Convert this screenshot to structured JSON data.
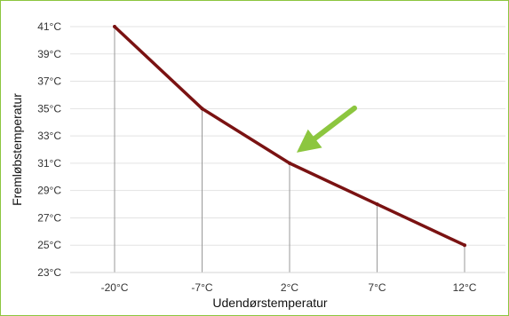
{
  "chart_data": {
    "type": "line",
    "title": "",
    "xlabel": "Udendørstemperatur",
    "ylabel": "Fremløbstemperatur",
    "categories": [
      "-20°C",
      "-7°C",
      "2°C",
      "7°C",
      "12°C"
    ],
    "series": [
      {
        "values": [
          41,
          35,
          31,
          28,
          25
        ]
      }
    ],
    "ylim": [
      23,
      41
    ],
    "yticks": [
      "23°C",
      "25°C",
      "27°C",
      "29°C",
      "31°C",
      "33°C",
      "35°C",
      "37°C",
      "39°C",
      "41°C"
    ],
    "grid": true,
    "legend": "none",
    "annotation": "arrow pointing at 2°C point",
    "colors": {
      "line": "#7a1212",
      "arrow": "#8cc63f",
      "frame": "#8cc63f",
      "grid": "#e3e3e3",
      "dropline": "#999999"
    }
  }
}
